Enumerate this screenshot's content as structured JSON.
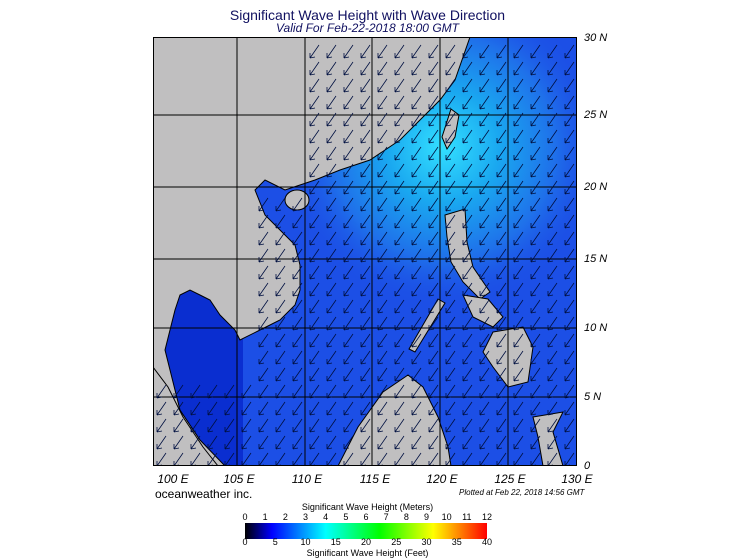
{
  "title": "Significant Wave Height with Wave Direction",
  "subtitle": "Valid For Feb-22-2018 18:00 GMT",
  "lon_labels": [
    "100 E",
    "105 E",
    "110 E",
    "115 E",
    "120 E",
    "125 E",
    "130 E"
  ],
  "lat_labels": [
    "30 N",
    "25 N",
    "20 N",
    "15 N",
    "10 N",
    "5 N",
    "0"
  ],
  "credit": "oceanweather inc.",
  "plotted": "Plotted at Feb 22, 2018 14:56 GMT",
  "legend": {
    "meters_title": "Significant Wave Height (Meters)",
    "meters": [
      "0",
      "1",
      "2",
      "3",
      "4",
      "5",
      "6",
      "7",
      "8",
      "9",
      "10",
      "11",
      "12"
    ],
    "feet_title": "Significant Wave Height (Feet)",
    "feet": [
      "0",
      "5",
      "10",
      "15",
      "20",
      "25",
      "30",
      "35",
      "40"
    ],
    "colors": [
      "#000000",
      "#0000ff",
      "#0080ff",
      "#00ffff",
      "#00ff80",
      "#00ff00",
      "#80ff00",
      "#ffff00",
      "#ff8000",
      "#ff0000"
    ]
  },
  "colors": {
    "land": "#c0bfc0",
    "ocean": "#1c4fe6",
    "ocean_high": "#29b8f5"
  }
}
